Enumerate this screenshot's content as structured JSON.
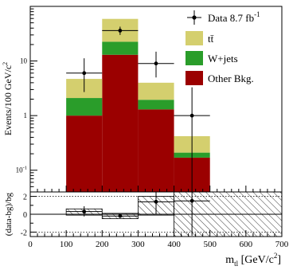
{
  "chart_data": {
    "type": "bar",
    "stacked": true,
    "x_edges": [
      0,
      100,
      200,
      300,
      400,
      500,
      600,
      700
    ],
    "xlim": [
      0,
      700
    ],
    "xlabel": {
      "main": "m",
      "sub": "tl",
      "unit_open": " [GeV/c",
      "unit_sup": "2",
      "unit_close": "]"
    },
    "xtick_labels": [
      "0",
      "100",
      "200",
      "300",
      "400",
      "500",
      "600",
      "700"
    ],
    "top_panel": {
      "ylabel": {
        "main": "Events/100 GeV/c",
        "sup": "2"
      },
      "yscale": "log",
      "ylim": [
        0.04,
        100
      ],
      "ytick_labels": [
        {
          "value": 0.1,
          "base": "10",
          "exp": "-1"
        },
        {
          "value": 1,
          "base": "1",
          "exp": ""
        },
        {
          "value": 10,
          "base": "10",
          "exp": ""
        }
      ],
      "series": [
        {
          "name": "Other Bkg.",
          "color": "#9b0000",
          "values": [
            0,
            1.0,
            13.0,
            1.3,
            0.17,
            0,
            0
          ]
        },
        {
          "name": "W+jets",
          "color": "#2a9d2a",
          "values": [
            0,
            1.1,
            9.5,
            0.65,
            0.04,
            0,
            0
          ]
        },
        {
          "name": "tt̄",
          "color": "#d4cf6e",
          "values": [
            0,
            2.6,
            36.5,
            2.05,
            0.21,
            0,
            0
          ]
        }
      ],
      "data": {
        "name": "Data 8.7 fb",
        "name_sup": "-1",
        "x": [
          150,
          250,
          350,
          450
        ],
        "y": [
          6.0,
          36.0,
          9.0,
          1.0
        ],
        "err_low": [
          3.3,
          6.0,
          4.0,
          0.97
        ],
        "err_high": [
          5.2,
          6.5,
          5.8,
          2.3
        ]
      }
    },
    "bottom_panel": {
      "ylabel": "(data-bg)/bg",
      "ylim": [
        -2.5,
        2.5
      ],
      "ytick_labels": [
        "-2",
        "0",
        "2"
      ],
      "ratio": {
        "x": [
          150,
          250,
          350,
          450
        ],
        "y": [
          0.3,
          -0.2,
          1.4,
          1.5
        ],
        "err_low": [
          0.55,
          0.2,
          1.4,
          3.9
        ],
        "err_high": [
          0.6,
          0.2,
          1.4,
          4.0
        ]
      },
      "uncertainty_band": [
        {
          "x0": 100,
          "x1": 200,
          "low": -0.1,
          "high": 0.6
        },
        {
          "x0": 200,
          "x1": 300,
          "low": -0.5,
          "high": 0.1
        },
        {
          "x0": 300,
          "x1": 400,
          "low": -0.1,
          "high": 2.0
        },
        {
          "x0": 400,
          "x1": 700,
          "low": -2.5,
          "high": 2.5
        }
      ]
    }
  }
}
